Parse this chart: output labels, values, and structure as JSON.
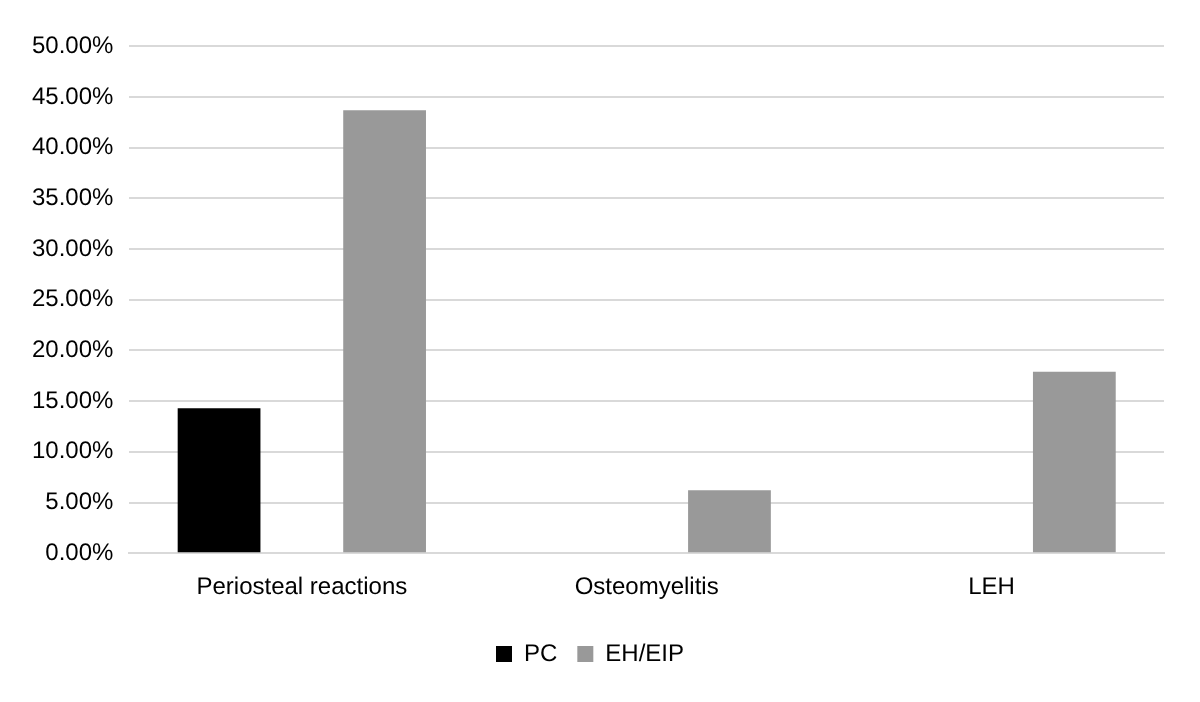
{
  "chart_data": {
    "type": "bar",
    "categories": [
      "Periosteal reactions",
      "Osteomyelitis",
      "LEH"
    ],
    "series": [
      {
        "name": "PC",
        "color": "#000000",
        "values": [
          14.3,
          0,
          0
        ]
      },
      {
        "name": "EH/EIP",
        "color": "#999999",
        "values": [
          43.7,
          6.2,
          17.9
        ]
      }
    ],
    "ylim": [
      0,
      50
    ],
    "yticks": [
      {
        "value": 0,
        "label": "0.00%"
      },
      {
        "value": 5,
        "label": "5.00%"
      },
      {
        "value": 10,
        "label": "10.00%"
      },
      {
        "value": 15,
        "label": "15.00%"
      },
      {
        "value": 20,
        "label": "20.00%"
      },
      {
        "value": 25,
        "label": "25.00%"
      },
      {
        "value": 30,
        "label": "30.00%"
      },
      {
        "value": 35,
        "label": "35.00%"
      },
      {
        "value": 40,
        "label": "40.00%"
      },
      {
        "value": 45,
        "label": "45.00%"
      },
      {
        "value": 50,
        "label": "50.00%"
      }
    ],
    "grid": "y",
    "legend": "bottom"
  }
}
